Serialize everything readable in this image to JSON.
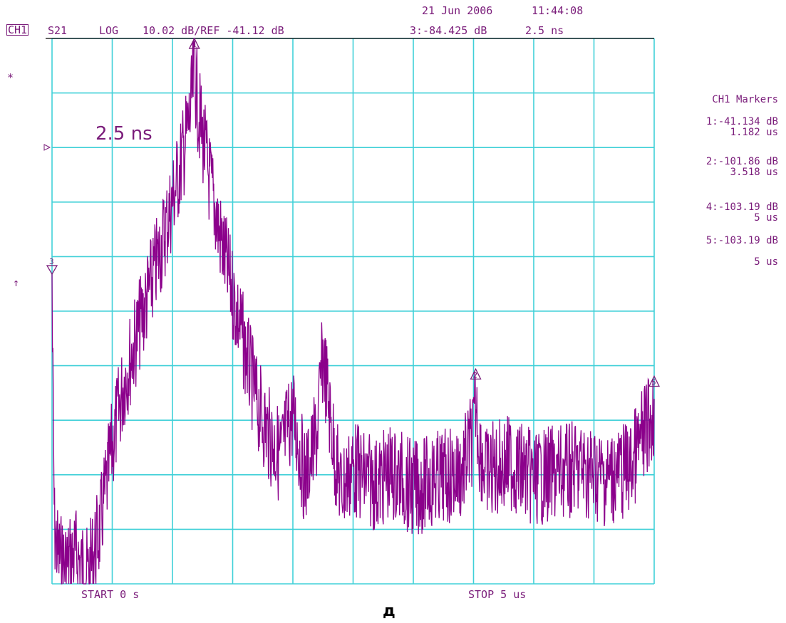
{
  "header": {
    "date": "21 Jun 2006",
    "time": "11:44:08",
    "channel": "CH1",
    "param": "S21",
    "format": "LOG",
    "scale": "10.02 dB/REF -41.12 dB",
    "active_marker": "3:-84.425 dB",
    "active_marker_time": "2.5 ns"
  },
  "side": {
    "star": "*",
    "arrow": "↑"
  },
  "markers_panel": {
    "title": "CH1 Markers",
    "items": [
      {
        "value": "1:-41.134 dB",
        "time": "1.182 us"
      },
      {
        "value": "2:-101.86 dB",
        "time": "3.518 us"
      },
      {
        "value": "4:-103.19 dB",
        "time": "5 us"
      },
      {
        "value": "5:-103.19 dB",
        "time": "5 us"
      }
    ]
  },
  "footer": {
    "start": "START 0 s",
    "stop": "STOP 5 us"
  },
  "caption": "д",
  "colors": {
    "grid": "#40d0d8",
    "trace": "#8b008b",
    "text": "#7a1c7a",
    "reference": "#000000"
  },
  "chart_data": {
    "type": "line",
    "xlim": [
      0,
      5
    ],
    "x_unit": "us",
    "ylim": [
      -141.32,
      -41.12
    ],
    "y_unit": "dB",
    "reference_db": -41.12,
    "divisions_x": 10,
    "divisions_y": 10,
    "grid": true,
    "annotation": "2.5 ns",
    "markers": [
      {
        "id": "1",
        "x": 1.182,
        "y": -41.134
      },
      {
        "id": "2",
        "x": 3.518,
        "y": -101.86
      },
      {
        "id": "3",
        "x": 0.0,
        "y": -84.425
      },
      {
        "id": "5",
        "x": 5.0,
        "y": -103.19
      }
    ],
    "envelope": {
      "x": [
        0.0,
        0.02,
        0.05,
        0.1,
        0.2,
        0.3,
        0.4,
        0.5,
        0.6,
        0.7,
        0.8,
        0.9,
        1.0,
        1.1,
        1.15,
        1.182,
        1.22,
        1.3,
        1.4,
        1.5,
        1.6,
        1.7,
        1.8,
        1.9,
        1.95,
        2.0,
        2.05,
        2.1,
        2.2,
        2.25,
        2.3,
        2.35,
        2.4,
        2.5,
        2.6,
        2.7,
        2.8,
        2.9,
        3.0,
        3.2,
        3.4,
        3.5,
        3.518,
        3.55,
        3.6,
        3.8,
        4.0,
        4.2,
        4.4,
        4.6,
        4.8,
        5.0
      ],
      "y": [
        -84.4,
        -125,
        -130,
        -132,
        -130,
        -134,
        -125,
        -110,
        -98,
        -90,
        -82,
        -74,
        -65,
        -55,
        -49,
        -41.1,
        -49,
        -60,
        -72,
        -82,
        -92,
        -102,
        -108,
        -112,
        -107,
        -104,
        -110,
        -116,
        -108,
        -93,
        -103,
        -112,
        -118,
        -114,
        -116,
        -117,
        -115,
        -116,
        -118,
        -116,
        -115,
        -108,
        -101.9,
        -110,
        -115,
        -113,
        -116,
        -115,
        -114,
        -116,
        -114,
        -103.2
      ]
    }
  }
}
